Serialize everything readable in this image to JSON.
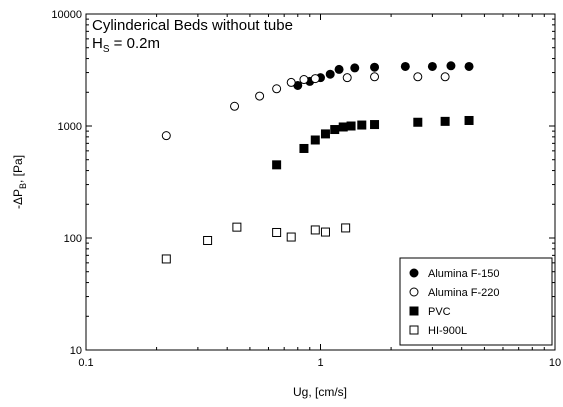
{
  "chart_data": {
    "type": "scatter",
    "annotation": {
      "line1": "Cylinderical Beds without tube",
      "line2": {
        "main": "H",
        "sub": "S",
        "rest": " = 0.2m"
      }
    },
    "xlabel": "Ug, [cm/s]",
    "ylabel": {
      "main": "-ΔP",
      "sub": "B",
      "rest": ", [Pa]"
    },
    "xscale": "log",
    "yscale": "log",
    "xlim": [
      0.1,
      10
    ],
    "ylim": [
      10,
      10000
    ],
    "xticks": [
      0.1,
      1,
      10
    ],
    "yticks": [
      10,
      100,
      1000,
      10000
    ],
    "legend": "lower right",
    "series": [
      {
        "name": "Alumina F-150",
        "color": "#000000",
        "marker": "circle",
        "filled": true,
        "x": [
          0.8,
          0.9,
          1.0,
          1.1,
          1.2,
          1.4,
          1.7,
          2.3,
          3.0,
          3.6,
          4.3
        ],
        "values": [
          2300,
          2500,
          2700,
          2900,
          3200,
          3300,
          3350,
          3400,
          3400,
          3450,
          3400
        ]
      },
      {
        "name": "Alumina F-220",
        "color": "#000000",
        "marker": "circle",
        "filled": false,
        "x": [
          0.22,
          0.43,
          0.55,
          0.65,
          0.75,
          0.85,
          0.95,
          1.3,
          1.7,
          2.6,
          3.4
        ],
        "values": [
          820,
          1500,
          1850,
          2150,
          2450,
          2600,
          2650,
          2700,
          2750,
          2750,
          2750
        ]
      },
      {
        "name": "PVC",
        "color": "#000000",
        "marker": "square",
        "filled": true,
        "x": [
          0.65,
          0.85,
          0.95,
          1.05,
          1.15,
          1.25,
          1.35,
          1.5,
          1.7,
          2.6,
          3.4,
          4.3
        ],
        "values": [
          450,
          630,
          750,
          850,
          930,
          980,
          1000,
          1020,
          1030,
          1080,
          1100,
          1120
        ]
      },
      {
        "name": "HI-900L",
        "color": "#000000",
        "marker": "square",
        "filled": false,
        "x": [
          0.22,
          0.33,
          0.44,
          0.65,
          0.75,
          0.95,
          1.05,
          1.28
        ],
        "values": [
          65,
          95,
          125,
          112,
          102,
          118,
          113,
          123
        ]
      }
    ]
  }
}
